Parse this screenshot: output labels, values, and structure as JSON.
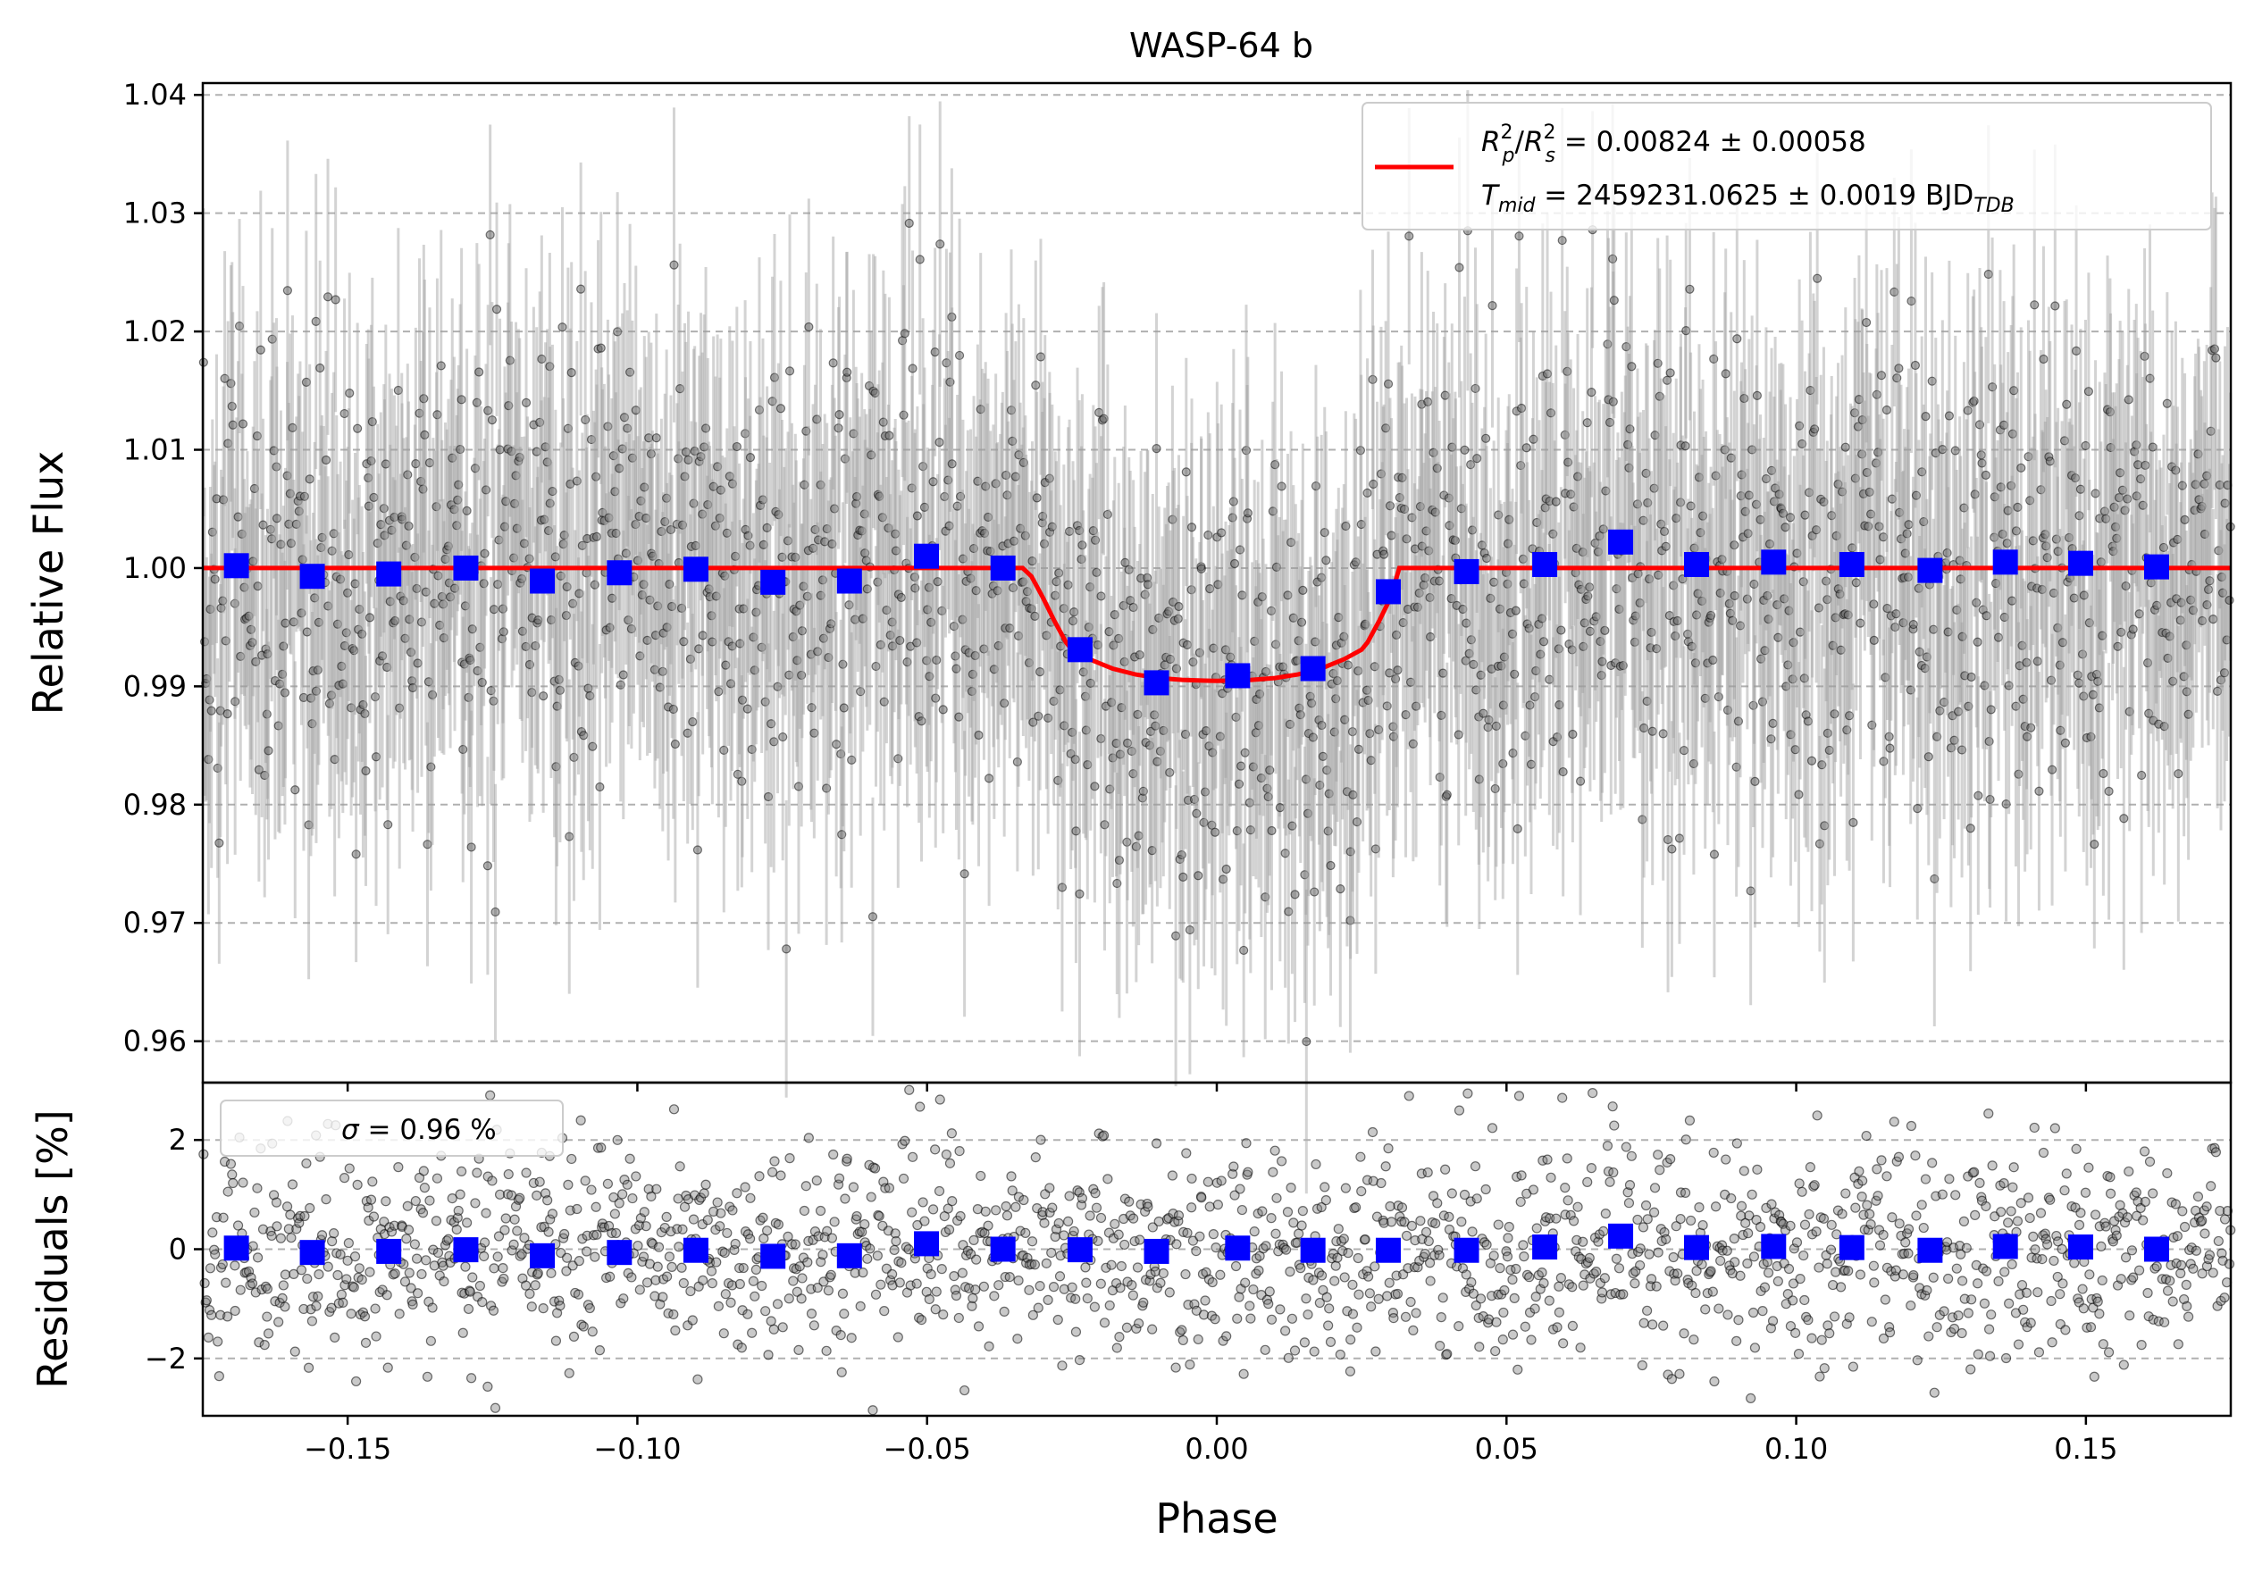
{
  "chart_data": [
    {
      "type": "scatter",
      "title": "WASP-64 b",
      "xlabel": "",
      "ylabel": "Relative Flux",
      "xlim": [
        -0.175,
        0.175
      ],
      "ylim": [
        0.9565,
        1.041
      ],
      "xticks": [
        -0.15,
        -0.1,
        -0.05,
        0.0,
        0.05,
        0.1,
        0.15
      ],
      "yticks": [
        0.96,
        0.97,
        0.98,
        0.99,
        1.0,
        1.01,
        1.02,
        1.03,
        1.04
      ],
      "ytick_labels": [
        "0.96",
        "0.97",
        "0.98",
        "0.99",
        "1.00",
        "1.01",
        "1.02",
        "1.03",
        "1.04"
      ],
      "grid": "horizontal dashed",
      "legend": {
        "placement": "top-right",
        "entries": [
          {
            "label_line1": {
              "R": "R",
              "p": "p",
              "sq": "2",
              "slash": "/",
              "R2": "R",
              "s": "s",
              "sq2": "2",
              "value": " = 0.00824 ± 0.00058"
            },
            "label_line2": {
              "T": "T",
              "mid": "mid",
              "value": " = 2459231.0625 ± 0.0019 BJD",
              "tdb": "TDB"
            },
            "color": "#ff0000"
          }
        ]
      },
      "series": [
        {
          "name": "raw data",
          "style": "black semi-transparent points with gray error bars",
          "n_points": 1700,
          "scatter_std": 0.0096,
          "typical_error": 0.011,
          "color": "#000000",
          "error_color": "#9e9e9e"
        },
        {
          "name": "binned data",
          "style": "blue squares",
          "color": "#0000ff",
          "x": [
            -0.1692,
            -0.1561,
            -0.1429,
            -0.1296,
            -0.1164,
            -0.1031,
            -0.0899,
            -0.0766,
            -0.0634,
            -0.0501,
            -0.0369,
            -0.0236,
            -0.0104,
            0.0036,
            0.0166,
            0.0296,
            0.0431,
            0.0566,
            0.0697,
            0.0828,
            0.0961,
            0.1096,
            0.1231,
            0.1361,
            0.1491,
            0.1622
          ],
          "y": [
            1.0002,
            0.9993,
            0.9995,
            1.0,
            0.9989,
            0.9996,
            0.9999,
            0.9988,
            0.9989,
            1.001,
            1.0,
            0.9931,
            0.9903,
            0.9909,
            0.9915,
            0.998,
            0.9997,
            1.0003,
            1.0022,
            1.0003,
            1.0005,
            1.0003,
            0.9998,
            1.0005,
            1.0004,
            1.0001
          ]
        },
        {
          "name": "transit model",
          "style": "red line",
          "color": "#ff0000",
          "x": [
            -0.175,
            -0.0335,
            -0.032,
            -0.03,
            -0.028,
            -0.026,
            -0.025,
            -0.022,
            -0.018,
            -0.014,
            -0.01,
            -0.006,
            -0.002,
            0.0,
            0.002,
            0.006,
            0.01,
            0.014,
            0.018,
            0.022,
            0.025,
            0.026,
            0.028,
            0.03,
            0.0315,
            0.175
          ],
          "y": [
            1.0,
            1.0,
            0.9993,
            0.9975,
            0.9955,
            0.9937,
            0.9931,
            0.9923,
            0.9915,
            0.991,
            0.9907,
            0.99055,
            0.99048,
            0.99046,
            0.99048,
            0.99055,
            0.9907,
            0.991,
            0.9915,
            0.9923,
            0.9931,
            0.9937,
            0.9955,
            0.9975,
            1.0,
            1.0
          ]
        }
      ]
    },
    {
      "type": "scatter",
      "title": "",
      "xlabel": "Phase",
      "ylabel": "Residuals [%]",
      "xlim": [
        -0.175,
        0.175
      ],
      "ylim": [
        -3.05,
        3.05
      ],
      "xticks": [
        -0.15,
        -0.1,
        -0.05,
        0.0,
        0.05,
        0.1,
        0.15
      ],
      "xtick_labels": [
        "−0.15",
        "−0.10",
        "−0.05",
        "0.00",
        "0.05",
        "0.10",
        "0.15"
      ],
      "yticks": [
        -2,
        0,
        2
      ],
      "ytick_labels": [
        "−2",
        "0",
        "2"
      ],
      "grid": "horizontal dashed",
      "legend": {
        "placement": "top-left",
        "sigma_symbol": "σ",
        "sigma_text": " = 0.96 %"
      },
      "series": [
        {
          "name": "residuals",
          "style": "black semi-transparent points",
          "n_points": 1700,
          "std": 0.96,
          "color": "#000000"
        },
        {
          "name": "binned residuals",
          "style": "blue squares",
          "color": "#0000ff",
          "x": [
            -0.1692,
            -0.1561,
            -0.1429,
            -0.1296,
            -0.1164,
            -0.1031,
            -0.0899,
            -0.0766,
            -0.0634,
            -0.0501,
            -0.0369,
            -0.0236,
            -0.0104,
            0.0036,
            0.0166,
            0.0296,
            0.0431,
            0.0566,
            0.0697,
            0.0828,
            0.0961,
            0.1096,
            0.1231,
            0.1361,
            0.1491,
            0.1622
          ],
          "y": [
            0.02,
            -0.06,
            -0.04,
            -0.01,
            -0.12,
            -0.06,
            -0.02,
            -0.13,
            -0.12,
            0.1,
            0.0,
            -0.01,
            -0.04,
            0.02,
            -0.02,
            -0.02,
            -0.02,
            0.04,
            0.24,
            0.03,
            0.05,
            0.03,
            -0.02,
            0.05,
            0.04,
            0.0
          ]
        }
      ]
    }
  ]
}
